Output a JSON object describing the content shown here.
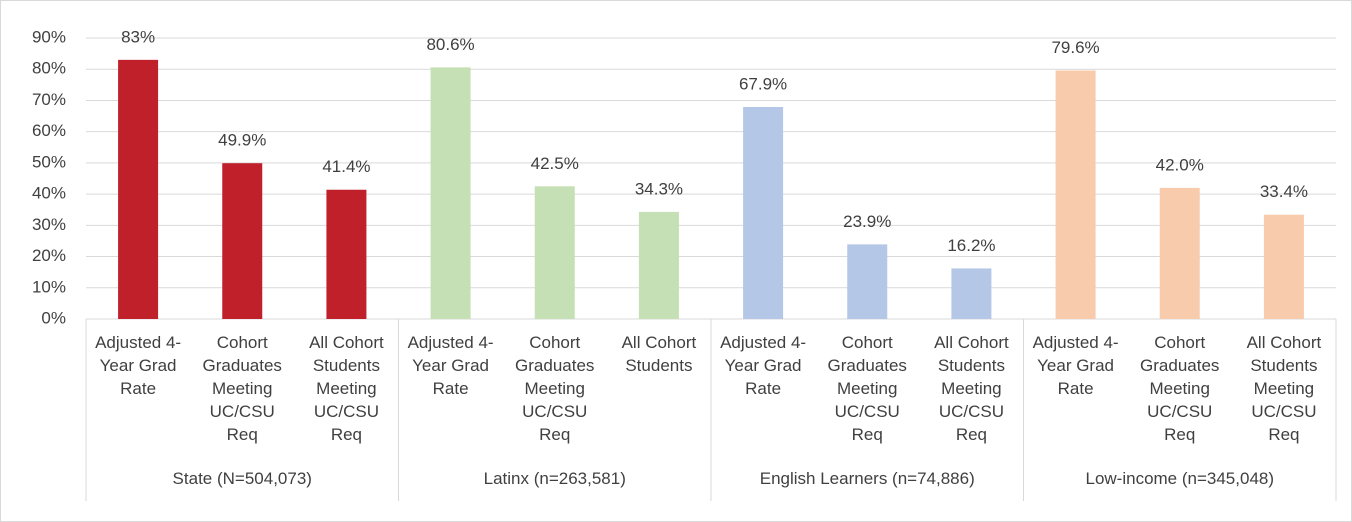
{
  "chart_data": {
    "type": "bar",
    "ylim": [
      0,
      90
    ],
    "yticks": [
      {
        "value": 0,
        "label": "0%"
      },
      {
        "value": 10,
        "label": "10%"
      },
      {
        "value": 20,
        "label": "20%"
      },
      {
        "value": 30,
        "label": "30%"
      },
      {
        "value": 40,
        "label": "40%"
      },
      {
        "value": 50,
        "label": "50%"
      },
      {
        "value": 60,
        "label": "60%"
      },
      {
        "value": 70,
        "label": "70%"
      },
      {
        "value": 80,
        "label": "80%"
      },
      {
        "value": 90,
        "label": "90%"
      }
    ],
    "grid": true,
    "groups": [
      {
        "name": "State (N=504,073)",
        "color": "#c0202a",
        "categories": [
          "Adjusted 4-Year Grad Rate",
          "Cohort Graduates Meeting UC/CSU Req",
          "All Cohort Students Meeting UC/CSU Req"
        ],
        "values": [
          83,
          49.9,
          41.4
        ],
        "value_labels": [
          "83%",
          "49.9%",
          "41.4%"
        ]
      },
      {
        "name": "Latinx (n=263,581)",
        "color": "#c5e0b4",
        "categories": [
          "Adjusted 4-Year Grad Rate",
          "Cohort Graduates Meeting UC/CSU Req",
          "All Cohort Students"
        ],
        "values": [
          80.6,
          42.5,
          34.3
        ],
        "value_labels": [
          "80.6%",
          "42.5%",
          "34.3%"
        ]
      },
      {
        "name": "English Learners (n=74,886)",
        "color": "#b4c7e7",
        "categories": [
          "Adjusted 4-Year Grad Rate",
          "Cohort Graduates Meeting UC/CSU Req",
          "All Cohort Students Meeting UC/CSU Req"
        ],
        "values": [
          67.9,
          23.9,
          16.2
        ],
        "value_labels": [
          "67.9%",
          "23.9%",
          "16.2%"
        ]
      },
      {
        "name": "Low-income (n=345,048)",
        "color": "#f8cbad",
        "categories": [
          "Adjusted 4-Year Grad Rate",
          "Cohort Graduates Meeting UC/CSU Req",
          "All Cohort Students Meeting UC/CSU Req"
        ],
        "values": [
          79.6,
          42.0,
          33.4
        ],
        "value_labels": [
          "79.6%",
          "42.0%",
          "33.4%"
        ]
      }
    ]
  }
}
